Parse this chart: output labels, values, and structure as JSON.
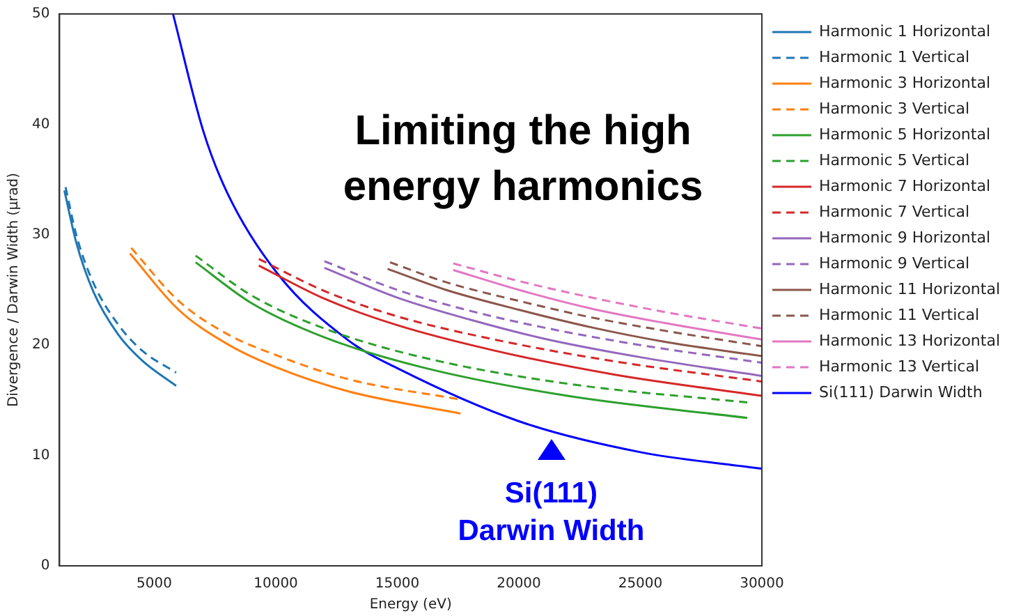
{
  "chart_data": {
    "type": "line",
    "xlabel": "Energy (eV)",
    "ylabel": "Divergence / Darwin Width (µrad)",
    "xlim": [
      1100,
      30000
    ],
    "xticks": [
      5000,
      10000,
      15000,
      20000,
      25000,
      30000
    ],
    "ylim": [
      0,
      50
    ],
    "yticks": [
      0,
      10,
      20,
      30,
      40,
      50
    ],
    "grid": false,
    "legend": "right",
    "marker": "none",
    "annotations": [
      "Limiting the high energy harmonics",
      "Si(111)\nDarwin Width"
    ],
    "series": [
      {
        "name": "Harmonic 1 Horizontal",
        "color": "#1f77b4",
        "line_style": "solid",
        "x": [
          1300,
          1800,
          2500,
          3500,
          4500,
          5900
        ],
        "values": [
          34.0,
          29.2,
          24.8,
          21.0,
          18.6,
          16.3
        ]
      },
      {
        "name": "Harmonic 1 Vertical",
        "color": "#1f77b4",
        "line_style": "dashed",
        "x": [
          1350,
          1800,
          2500,
          3500,
          4500,
          5900
        ],
        "values": [
          34.3,
          29.9,
          25.6,
          21.9,
          19.5,
          17.5
        ]
      },
      {
        "name": "Harmonic 3 Horizontal",
        "color": "#ff7f0e",
        "line_style": "solid",
        "x": [
          4000,
          6000,
          8000,
          10000,
          13000,
          17600
        ],
        "values": [
          28.3,
          23.2,
          20.1,
          18.0,
          15.8,
          13.8
        ]
      },
      {
        "name": "Harmonic 3 Vertical",
        "color": "#ff7f0e",
        "line_style": "dashed",
        "x": [
          4050,
          6000,
          8000,
          10000,
          13000,
          17500
        ],
        "values": [
          28.8,
          24.0,
          21.0,
          19.1,
          16.9,
          15.1
        ]
      },
      {
        "name": "Harmonic 5 Horizontal",
        "color": "#2ca02c",
        "line_style": "solid",
        "x": [
          6700,
          9000,
          12000,
          16000,
          22000,
          29400
        ],
        "values": [
          27.5,
          23.8,
          20.7,
          18.0,
          15.4,
          13.4
        ]
      },
      {
        "name": "Harmonic 5 Vertical",
        "color": "#2ca02c",
        "line_style": "dashed",
        "x": [
          6700,
          9000,
          12000,
          16000,
          22000,
          29400
        ],
        "values": [
          28.1,
          24.5,
          21.5,
          18.9,
          16.5,
          14.8
        ]
      },
      {
        "name": "Harmonic 7 Horizontal",
        "color": "#d62728",
        "line_style": "solid",
        "x": [
          9300,
          12000,
          15000,
          19000,
          24000,
          30000
        ],
        "values": [
          27.2,
          24.2,
          21.8,
          19.5,
          17.3,
          15.4
        ]
      },
      {
        "name": "Harmonic 7 Vertical",
        "color": "#d62728",
        "line_style": "dashed",
        "x": [
          9300,
          12000,
          15000,
          19000,
          24000,
          30000
        ],
        "values": [
          27.8,
          24.9,
          22.6,
          20.5,
          18.5,
          16.7
        ]
      },
      {
        "name": "Harmonic 9 Horizontal",
        "color": "#9467bd",
        "line_style": "solid",
        "x": [
          12000,
          15000,
          18000,
          21000,
          25000,
          30000
        ],
        "values": [
          27.0,
          24.3,
          22.3,
          20.6,
          18.9,
          17.2
        ]
      },
      {
        "name": "Harmonic 9 Vertical",
        "color": "#9467bd",
        "line_style": "dashed",
        "x": [
          12000,
          15000,
          18000,
          21000,
          25000,
          30000
        ],
        "values": [
          27.6,
          25.0,
          23.1,
          21.6,
          20.0,
          18.4
        ]
      },
      {
        "name": "Harmonic 11 Horizontal",
        "color": "#8c564b",
        "line_style": "solid",
        "x": [
          14600,
          17000,
          20000,
          23000,
          26000,
          30000
        ],
        "values": [
          26.9,
          25.0,
          23.2,
          21.6,
          20.3,
          19.0
        ]
      },
      {
        "name": "Harmonic 11 Vertical",
        "color": "#8c564b",
        "line_style": "dashed",
        "x": [
          14700,
          17000,
          20000,
          23000,
          26000,
          30000
        ],
        "values": [
          27.5,
          25.7,
          24.0,
          22.5,
          21.3,
          19.9
        ]
      },
      {
        "name": "Harmonic 13 Horizontal",
        "color": "#e377c2",
        "line_style": "solid",
        "x": [
          17300,
          20000,
          23000,
          26000,
          30000
        ],
        "values": [
          26.8,
          25.0,
          23.3,
          22.0,
          20.5
        ]
      },
      {
        "name": "Harmonic 13 Vertical",
        "color": "#e377c2",
        "line_style": "dashed",
        "x": [
          17300,
          20000,
          23000,
          26000,
          30000
        ],
        "values": [
          27.4,
          25.8,
          24.3,
          23.0,
          21.5
        ]
      },
      {
        "name": "Si(111) Darwin Width",
        "color": "#0000ff",
        "line_style": "solid",
        "x": [
          5770,
          7000,
          8000,
          10060,
          13000,
          15000,
          20000,
          25000,
          30000
        ],
        "values": [
          50,
          39.5,
          33.8,
          26.5,
          20.4,
          17.9,
          13.1,
          10.3,
          8.8
        ]
      }
    ]
  }
}
